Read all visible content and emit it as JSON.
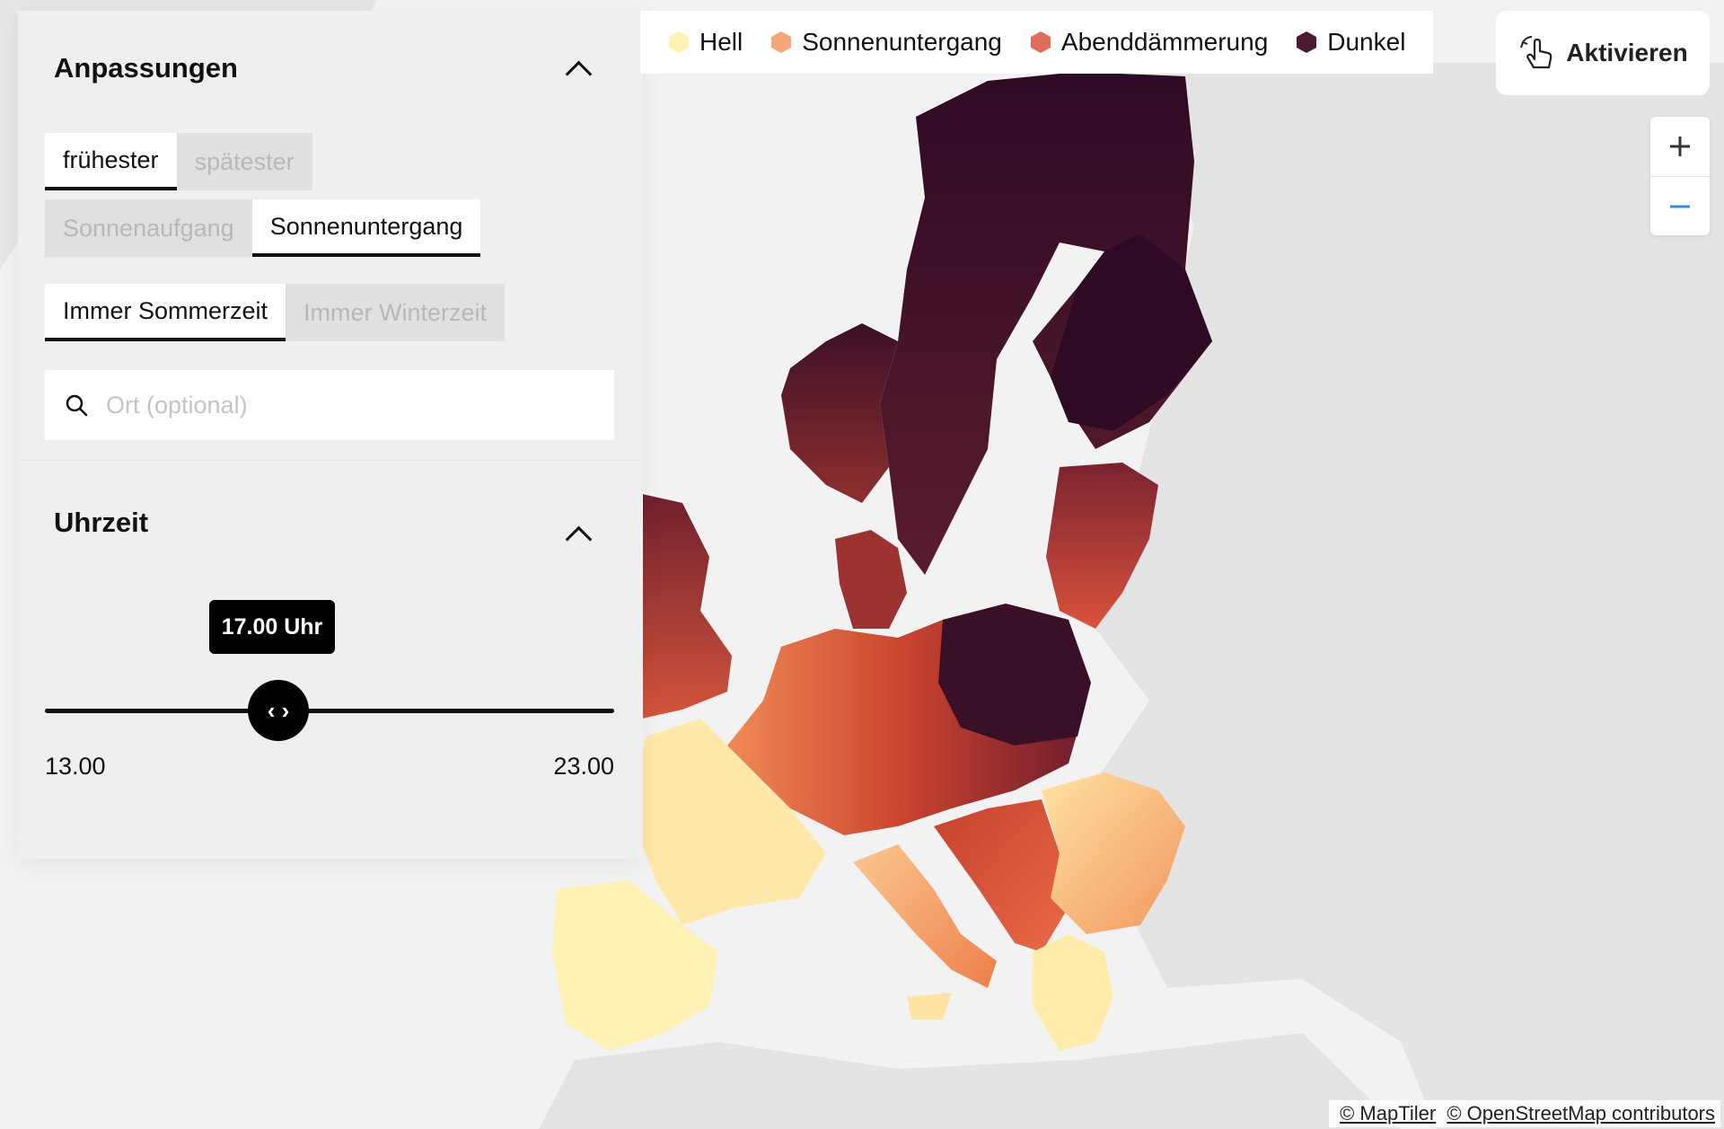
{
  "map": {
    "style_colors": {
      "water": "#f2f2f2",
      "land": "#e4e4e4",
      "hell": "#fff0b3",
      "sonnenuntergang": "#f7a57a",
      "abenddaemmerung": "#e06c5d",
      "dunkel": "#4a1a32"
    },
    "attribution": [
      "© MapTiler",
      "© OpenStreetMap contributors"
    ]
  },
  "legend": [
    {
      "label": "Hell",
      "color": "#fff0b3"
    },
    {
      "label": "Sonnenuntergang",
      "color": "#f7a57a"
    },
    {
      "label": "Abenddämmerung",
      "color": "#e06c5d"
    },
    {
      "label": "Dunkel",
      "color": "#4a1a32"
    }
  ],
  "activate_button": {
    "label": "Aktivieren",
    "icon": "pointer-hand-icon"
  },
  "zoom": {
    "plus": "+",
    "minus": "−"
  },
  "adjustments": {
    "title": "Anpassungen",
    "order_toggle": {
      "options": [
        "frühester",
        "spätester"
      ],
      "selected": "frühester"
    },
    "event_toggle": {
      "options": [
        "Sonnenaufgang",
        "Sonnenuntergang"
      ],
      "selected": "Sonnenuntergang"
    },
    "time_mode_toggle": {
      "options": [
        "Immer Sommerzeit",
        "Immer Winterzeit"
      ],
      "selected": "Immer Sommerzeit"
    },
    "search": {
      "placeholder": "Ort (optional)",
      "value": ""
    }
  },
  "time_panel": {
    "title": "Uhrzeit",
    "slider": {
      "min_label": "13.00",
      "max_label": "23.00",
      "min": 13,
      "max": 23,
      "value": 17,
      "value_label": "17.00 Uhr",
      "thumb_glyph": "‹ ›"
    }
  }
}
